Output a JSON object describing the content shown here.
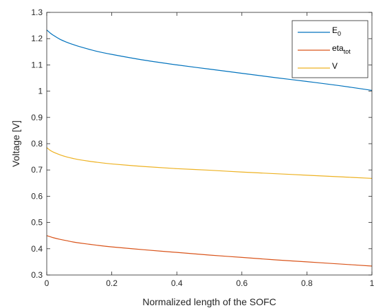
{
  "chart_data": {
    "type": "line",
    "xlabel": "Normalized length of the SOFC",
    "ylabel": "Voltage [V]",
    "xlim": [
      0,
      1
    ],
    "ylim": [
      0.3,
      1.3
    ],
    "xticks": [
      "0",
      "0.2",
      "0.4",
      "0.6",
      "0.8",
      "1"
    ],
    "yticks": [
      "0.3",
      "0.4",
      "0.5",
      "0.6",
      "0.7",
      "0.8",
      "0.9",
      "1",
      "1.1",
      "1.2",
      "1.3"
    ],
    "x": [
      0,
      0.01,
      0.02,
      0.04,
      0.06,
      0.08,
      0.1,
      0.15,
      0.2,
      0.3,
      0.4,
      0.5,
      0.6,
      0.7,
      0.8,
      0.9,
      1.0
    ],
    "series": [
      {
        "name": "E",
        "name_subscript": "0",
        "color": "#0072BD",
        "values": [
          1.233,
          1.222,
          1.213,
          1.198,
          1.187,
          1.178,
          1.17,
          1.153,
          1.14,
          1.118,
          1.1,
          1.084,
          1.068,
          1.052,
          1.037,
          1.021,
          1.003
        ]
      },
      {
        "name": "eta",
        "name_subscript": "tot",
        "color": "#D95319",
        "values": [
          0.45,
          0.446,
          0.442,
          0.436,
          0.431,
          0.426,
          0.422,
          0.414,
          0.407,
          0.396,
          0.386,
          0.376,
          0.367,
          0.358,
          0.35,
          0.342,
          0.334
        ]
      },
      {
        "name": "V",
        "name_subscript": "",
        "color": "#EDB120",
        "values": [
          0.785,
          0.775,
          0.768,
          0.758,
          0.75,
          0.744,
          0.739,
          0.73,
          0.723,
          0.713,
          0.705,
          0.699,
          0.692,
          0.686,
          0.68,
          0.674,
          0.668
        ]
      }
    ],
    "legend_position": "top-right",
    "grid": false
  }
}
